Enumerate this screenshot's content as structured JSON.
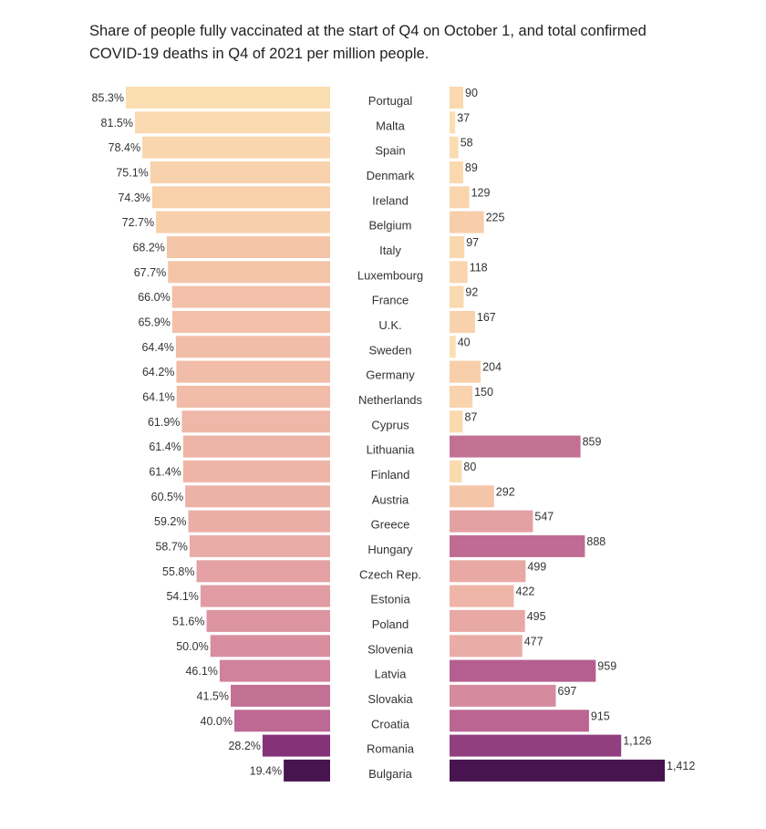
{
  "title": "Share of people fully vaccinated at the start of Q4 on October 1, and total confirmed COVID-19 deaths in Q4 of 2021 per million people.",
  "chart_data": {
    "type": "bar",
    "layout": "back-to-back horizontal bars",
    "categories": [
      "Portugal",
      "Malta",
      "Spain",
      "Denmark",
      "Ireland",
      "Belgium",
      "Italy",
      "Luxembourg",
      "France",
      "U.K.",
      "Sweden",
      "Germany",
      "Netherlands",
      "Cyprus",
      "Lithuania",
      "Finland",
      "Austria",
      "Greece",
      "Hungary",
      "Czech Rep.",
      "Estonia",
      "Poland",
      "Slovenia",
      "Latvia",
      "Slovakia",
      "Croatia",
      "Romania",
      "Bulgaria"
    ],
    "series": [
      {
        "values": [
          85.3,
          81.5,
          78.4,
          75.1,
          74.3,
          72.7,
          68.2,
          67.7,
          66.0,
          65.9,
          64.4,
          64.2,
          64.1,
          61.9,
          61.4,
          61.4,
          60.5,
          59.2,
          58.7,
          55.8,
          54.1,
          51.6,
          50.0,
          46.1,
          41.5,
          40.0,
          28.2,
          19.4
        ],
        "labels": [
          "85.3%",
          "81.5%",
          "78.4%",
          "75.1%",
          "74.3%",
          "72.7%",
          "68.2%",
          "67.7%",
          "66.0%",
          "65.9%",
          "64.4%",
          "64.2%",
          "64.1%",
          "61.9%",
          "61.4%",
          "61.4%",
          "60.5%",
          "59.2%",
          "58.7%",
          "55.8%",
          "54.1%",
          "51.6%",
          "50.0%",
          "46.1%",
          "41.5%",
          "40.0%",
          "28.2%",
          "19.4%"
        ],
        "direction": "left",
        "color_scale": "light peach (high) to dark purple (low)"
      },
      {
        "values": [
          90,
          37,
          58,
          89,
          129,
          225,
          97,
          118,
          92,
          167,
          40,
          204,
          150,
          87,
          859,
          80,
          292,
          547,
          888,
          499,
          422,
          495,
          477,
          959,
          697,
          915,
          1126,
          1412
        ],
        "labels": [
          "90",
          "37",
          "58",
          "89",
          "129",
          "225",
          "97",
          "118",
          "92",
          "167",
          "40",
          "204",
          "150",
          "87",
          "859",
          "80",
          "292",
          "547",
          "888",
          "499",
          "422",
          "495",
          "477",
          "959",
          "697",
          "915",
          "1,126",
          "1,412"
        ],
        "direction": "right",
        "color_scale": "light peach (low) to dark purple (high)"
      }
    ],
    "colors": {
      "light": "#fbdfb2",
      "mid_light": "#f2bba9",
      "mid": "#e59ea3",
      "pink": "#d47f9a",
      "magenta": "#b75e8e",
      "purple": "#8e3a7d",
      "dark": "#4a1450"
    },
    "grid": false,
    "legend": "none"
  }
}
